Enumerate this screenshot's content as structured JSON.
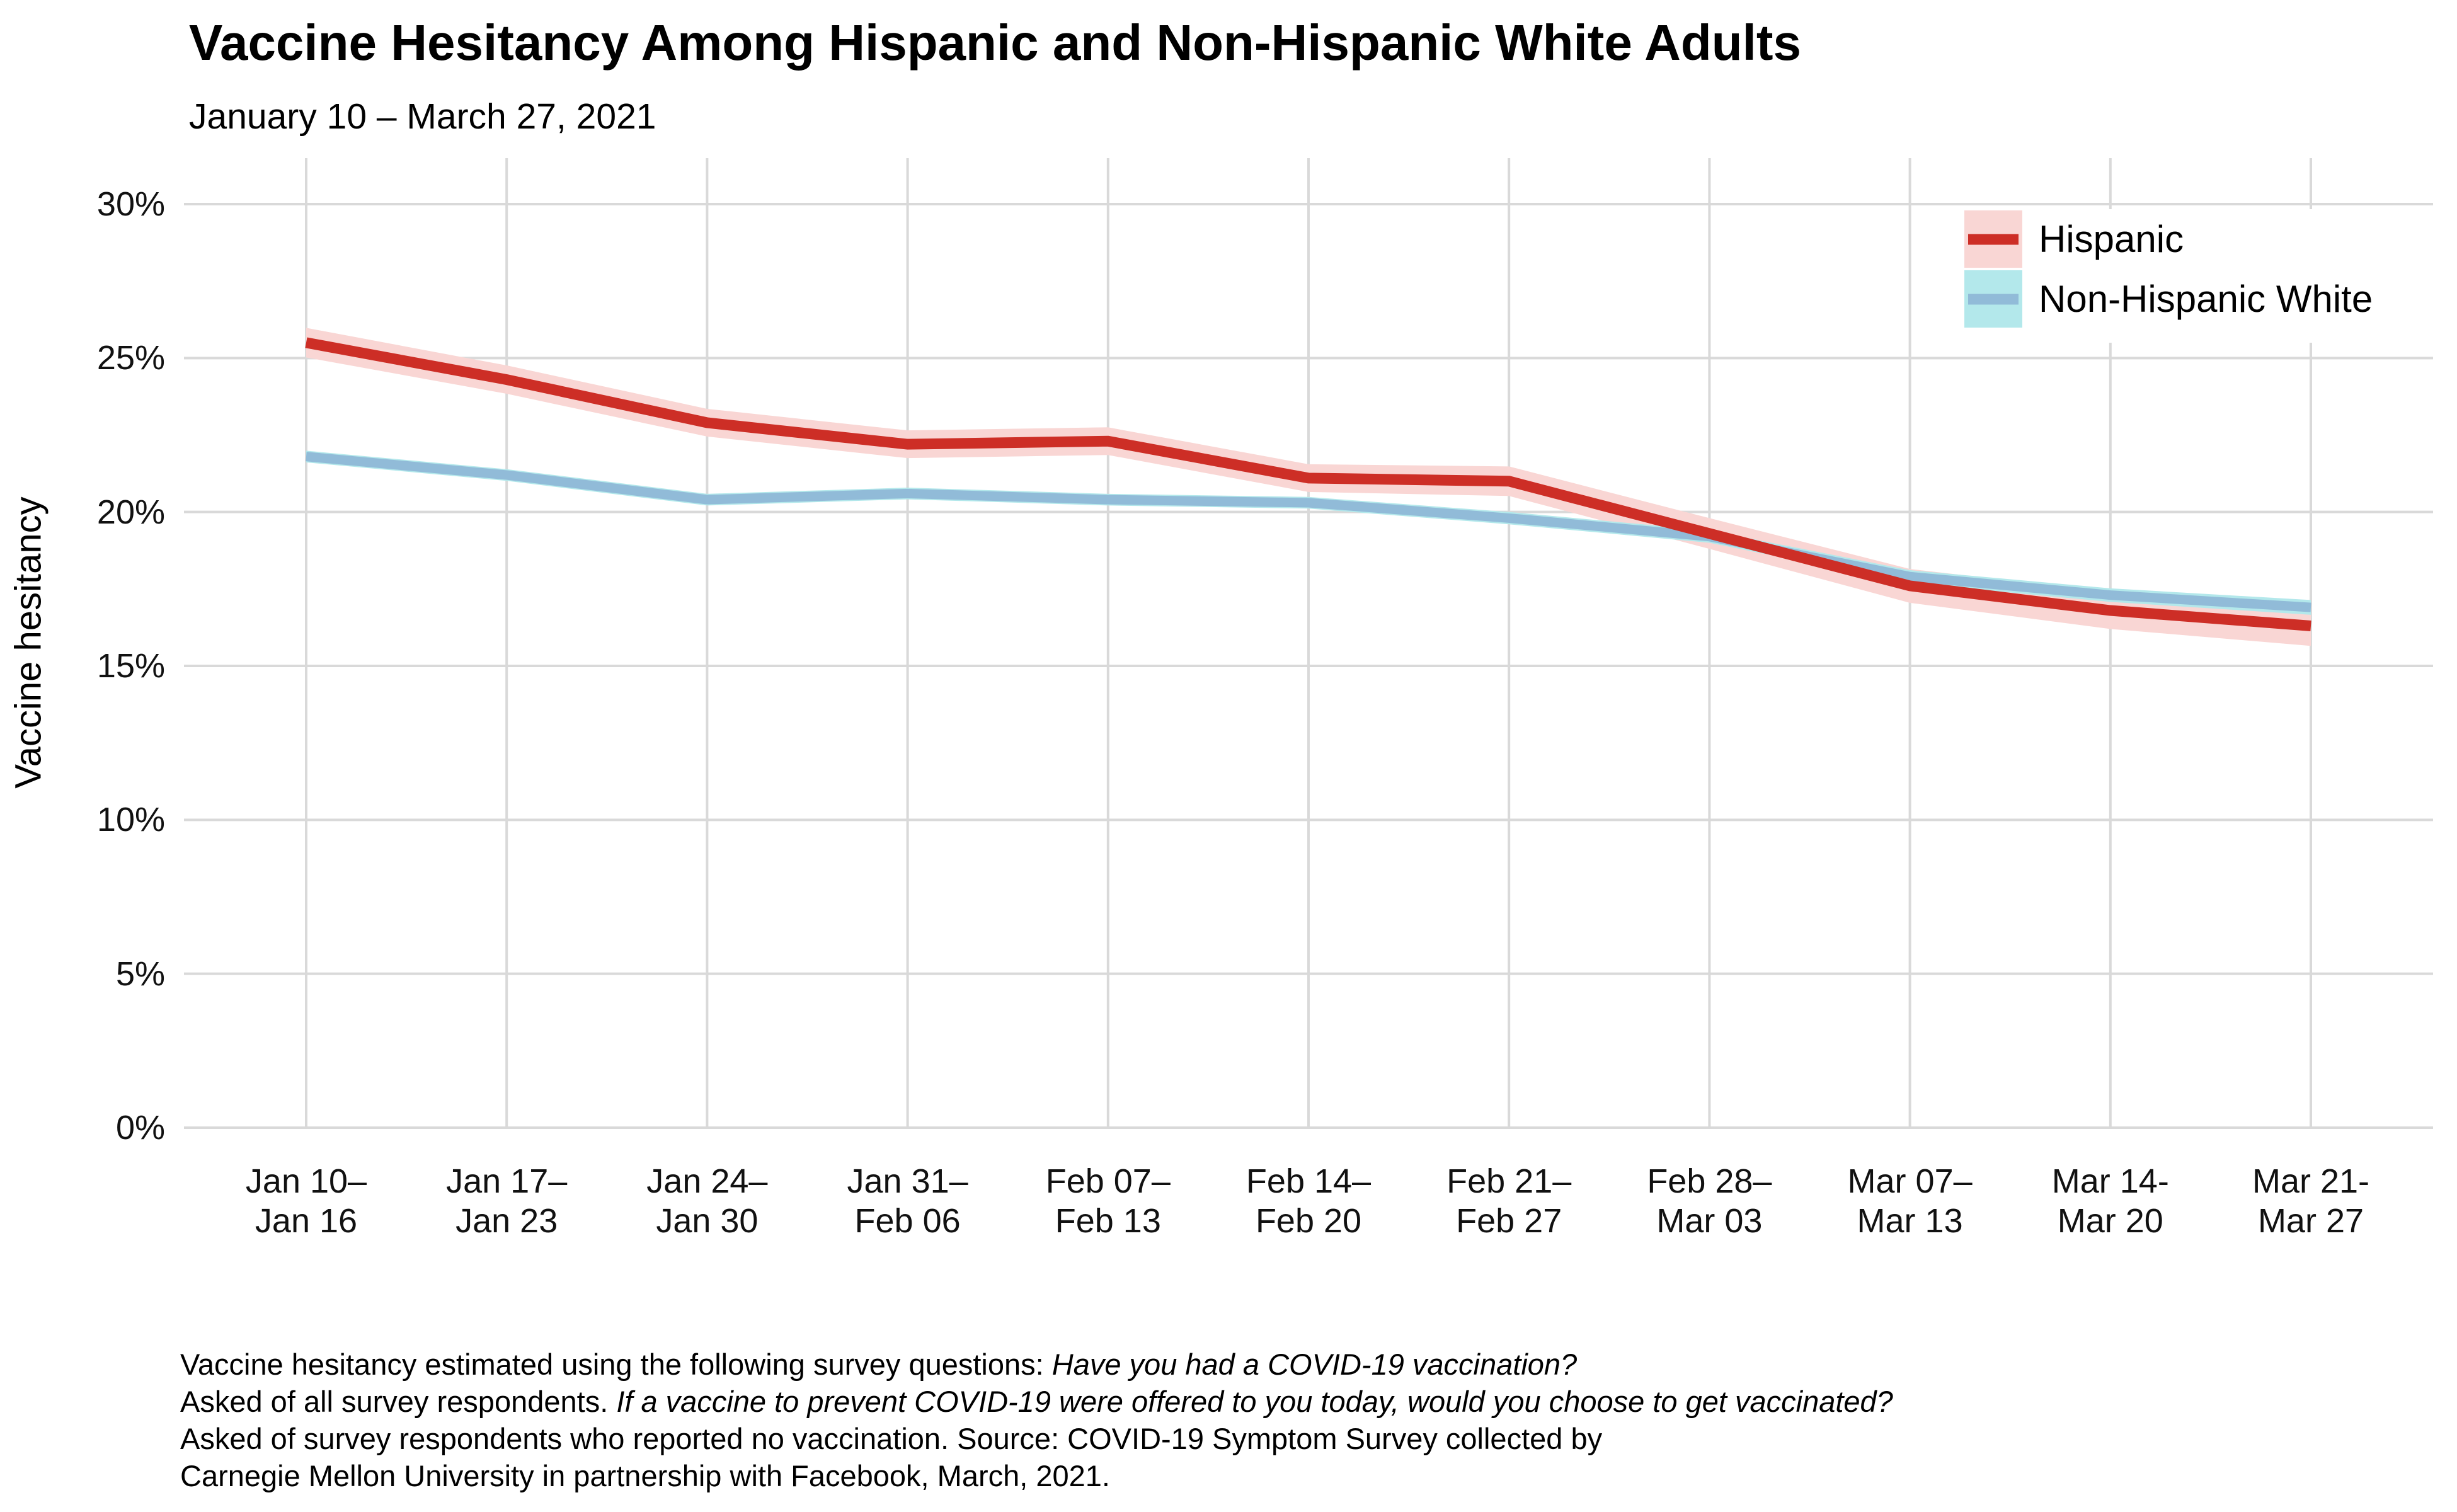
{
  "header": {
    "title": "Vaccine Hesitancy Among Hispanic and Non-Hispanic White Adults",
    "subtitle": "January 10 – March 27, 2021"
  },
  "chart_data": {
    "type": "line",
    "title": "Vaccine Hesitancy Among Hispanic and Non-Hispanic White Adults",
    "subtitle": "January 10 – March 27, 2021",
    "xlabel": "",
    "ylabel": "Vaccine hesitancy",
    "ylim": [
      0,
      30
    ],
    "grid": true,
    "legend_position": "top-right-inside",
    "y_ticks": [
      {
        "value": 0,
        "label": "0%"
      },
      {
        "value": 5,
        "label": "5%"
      },
      {
        "value": 10,
        "label": "10%"
      },
      {
        "value": 15,
        "label": "15%"
      },
      {
        "value": 20,
        "label": "20%"
      },
      {
        "value": 25,
        "label": "25%"
      },
      {
        "value": 30,
        "label": "30%"
      }
    ],
    "categories": [
      "Jan 10–Jan 16",
      "Jan 17–Jan 23",
      "Jan 24–Jan 30",
      "Jan 31–Feb 06",
      "Feb 07–Feb 13",
      "Feb 14–Feb 20",
      "Feb 21–Feb 27",
      "Feb 28–Mar 03",
      "Mar 07–Mar 13",
      "Mar 14-Mar 20",
      "Mar 21-Mar 27"
    ],
    "x_tick_labels": [
      [
        "Jan 10–",
        "Jan 16"
      ],
      [
        "Jan 17–",
        "Jan 23"
      ],
      [
        "Jan 24–",
        "Jan 30"
      ],
      [
        "Jan 31–",
        "Feb 06"
      ],
      [
        "Feb 07–",
        "Feb 13"
      ],
      [
        "Feb 14–",
        "Feb 20"
      ],
      [
        "Feb 21–",
        "Feb 27"
      ],
      [
        "Feb 28–",
        "Mar 03"
      ],
      [
        "Mar 07–",
        "Mar 13"
      ],
      [
        "Mar 14-",
        "Mar 20"
      ],
      [
        "Mar 21-",
        "Mar 27"
      ]
    ],
    "series": [
      {
        "name": "Hispanic",
        "values": [
          25.5,
          24.3,
          22.9,
          22.2,
          22.3,
          21.1,
          21.0,
          19.3,
          17.6,
          16.8,
          16.3
        ],
        "band_halfwidth": [
          0.48,
          0.46,
          0.45,
          0.45,
          0.45,
          0.45,
          0.48,
          0.5,
          0.55,
          0.6,
          0.65
        ],
        "line_color": "#cd2e26",
        "band_color": "#f9d6d4",
        "line_width": 17
      },
      {
        "name": "Non-Hispanic White",
        "values": [
          21.8,
          21.2,
          20.4,
          20.6,
          20.4,
          20.3,
          19.8,
          19.2,
          17.9,
          17.3,
          16.9
        ],
        "band_halfwidth": [
          0.19,
          0.19,
          0.19,
          0.19,
          0.19,
          0.19,
          0.2,
          0.2,
          0.21,
          0.22,
          0.24
        ],
        "line_color": "#91bbd8",
        "band_color": "#b3e8eb",
        "line_width": 15
      }
    ]
  },
  "colors": {
    "background": "#ffffff",
    "grid": "#d9d9d9",
    "text": "#000000"
  },
  "caption": {
    "lines": [
      [
        {
          "t": "Vaccine hesitancy estimated using the following survey questions: ",
          "i": false
        },
        {
          "t": "Have you had a COVID-19 vaccination?",
          "i": true
        }
      ],
      [
        {
          "t": "Asked of all survey respondents. ",
          "i": false
        },
        {
          "t": "If a vaccine to prevent COVID-19 were offered to you today, would you choose to get vaccinated?",
          "i": true
        }
      ],
      [
        {
          "t": "Asked of survey respondents who reported no vaccination. Source: COVID-19 Symptom Survey collected by",
          "i": false
        }
      ],
      [
        {
          "t": "Carnegie Mellon University in partnership with Facebook, March, 2021.",
          "i": false
        }
      ]
    ]
  }
}
